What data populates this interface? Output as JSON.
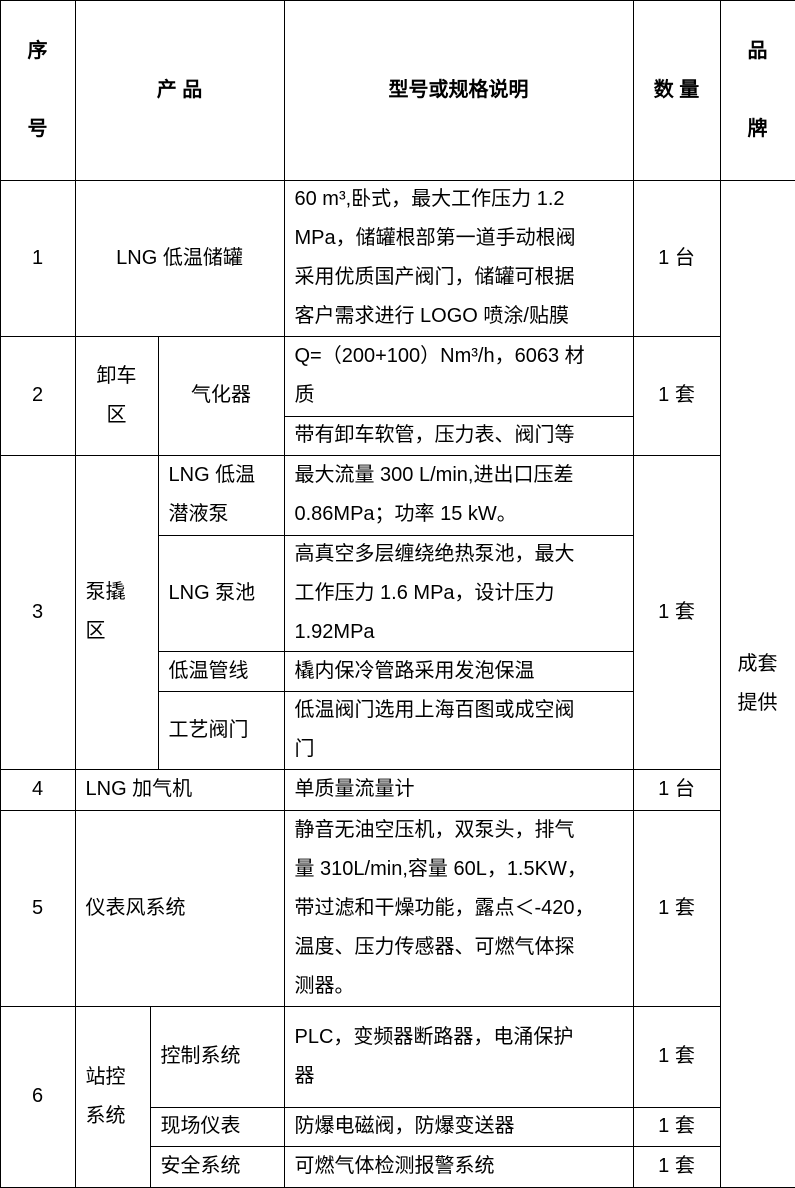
{
  "header": {
    "no": "序\n\n号",
    "product": "产   品",
    "spec": "型号或规格说明",
    "qty": "数  量",
    "brand": "品\n\n牌"
  },
  "brand_value": "成套\n提供",
  "rows": [
    {
      "no": "1",
      "product": "LNG 低温储罐",
      "spec": "60 m³,卧式，最大工作压力 1.2\nMPa，储罐根部第一道手动根阀\n采用优质国产阀门，储罐可根据\n客户需求进行 LOGO 喷涂/贴膜",
      "qty": "1 台"
    },
    {
      "no": "2",
      "area": "卸车\n区",
      "item": "气化器",
      "spec_a": "Q=（200+100）Nm³/h，6063 材\n质",
      "spec_b": "带有卸车软管，压力表、阀门等",
      "qty": "1 套"
    },
    {
      "no": "3",
      "area": "泵撬\n区",
      "items": [
        {
          "item": "LNG 低温\n潜液泵",
          "spec": "最大流量 300 L/min,进出口压差\n0.86MPa；功率 15 kW。"
        },
        {
          "item": "LNG 泵池",
          "spec": "高真空多层缠绕绝热泵池，最大\n工作压力 1.6 MPa，设计压力\n1.92MPa"
        },
        {
          "item": "低温管线",
          "spec": "橇内保冷管路采用发泡保温"
        },
        {
          "item": "工艺阀门",
          "spec": "低温阀门选用上海百图或成空阀\n门"
        }
      ],
      "qty": "1 套"
    },
    {
      "no": "4",
      "product": "LNG 加气机",
      "spec": "单质量流量计",
      "qty": "1 台"
    },
    {
      "no": "5",
      "product": "仪表风系统",
      "spec": "静音无油空压机，双泵头，排气\n量 310L/min,容量 60L，1.5KW，\n带过滤和干燥功能，露点＜-420，\n温度、压力传感器、可燃气体探\n测器。",
      "qty": "1 套"
    },
    {
      "no": "6",
      "area": "站控\n系统",
      "items": [
        {
          "item": "控制系统",
          "spec": "PLC，变频器断路器，电涌保护\n器",
          "qty": "1 套"
        },
        {
          "item": "现场仪表",
          "spec": "防爆电磁阀，防爆变送器",
          "qty": "1 套"
        },
        {
          "item": "安全系统",
          "spec": "可燃气体检测报警系统",
          "qty": "1 套"
        }
      ]
    }
  ]
}
